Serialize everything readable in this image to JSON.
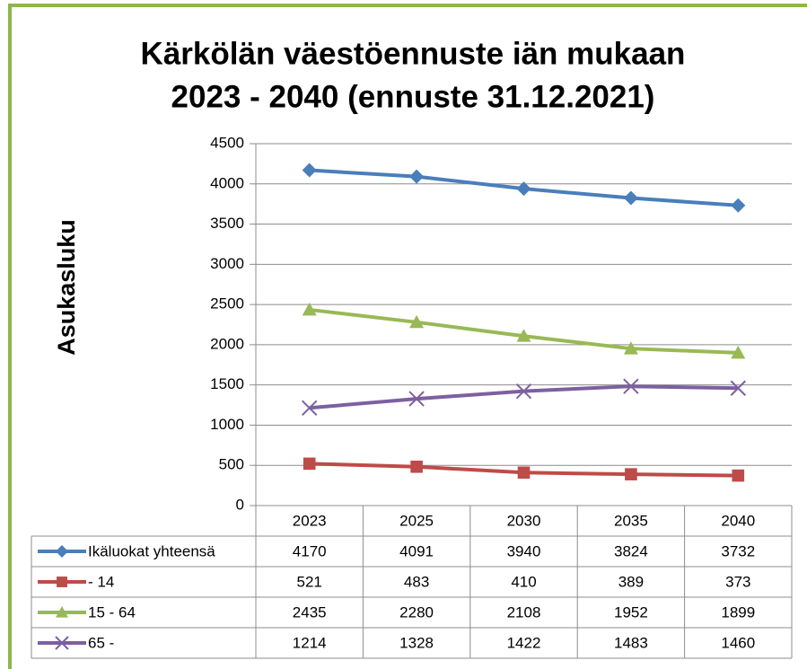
{
  "chart_data": {
    "type": "line",
    "title": [
      "Kärkölän väestöennuste iän mukaan",
      "2023 - 2040 (ennuste 31.12.2021)"
    ],
    "y_label": "Asukasluku",
    "categories": [
      "2023",
      "2025",
      "2030",
      "2035",
      "2040"
    ],
    "ylim": [
      0,
      4500
    ],
    "yticks": [
      0,
      500,
      1000,
      1500,
      2000,
      2500,
      3000,
      3500,
      4000,
      4500
    ],
    "grid": true,
    "data_table": true,
    "series": [
      {
        "name": "Ikäluokat yhteensä",
        "color": "#4a7ebb",
        "marker": "diamond",
        "values": [
          4170,
          4091,
          3940,
          3824,
          3732
        ]
      },
      {
        "name": "- 14",
        "color": "#be4b48",
        "marker": "square",
        "values": [
          521,
          483,
          410,
          389,
          373
        ]
      },
      {
        "name": "15 - 64",
        "color": "#98b954",
        "marker": "triangle",
        "values": [
          2435,
          2280,
          2108,
          1952,
          1899
        ]
      },
      {
        "name": "65 -",
        "color": "#7d60a0",
        "marker": "x",
        "values": [
          1214,
          1328,
          1422,
          1483,
          1460
        ]
      }
    ]
  }
}
